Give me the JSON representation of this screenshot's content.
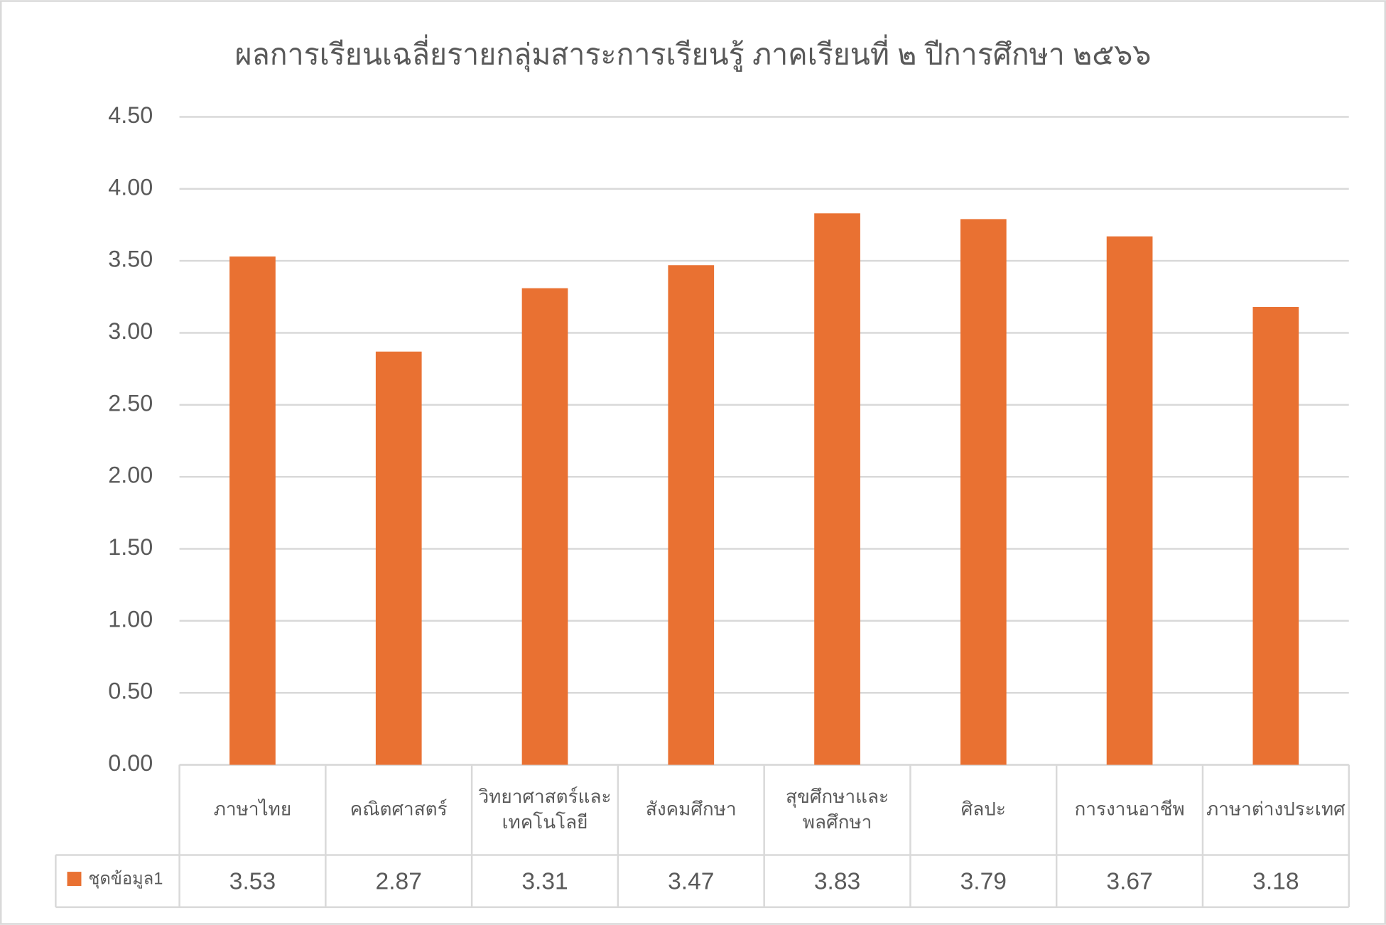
{
  "chart_data": {
    "type": "bar",
    "title": "ผลการเรียนเฉลี่ยรายกลุ่มสาระการเรียนรู้  ภาคเรียนที่ ๒ ปีการศึกษา ๒๕๖๖",
    "categories": [
      "ภาษาไทย",
      "คณิตศาสตร์",
      "วิทยาศาสตร์และเทคโนโลยี",
      "สังคมศึกษา",
      "สุขศึกษาและพลศึกษา",
      "ศิลปะ",
      "การงานอาชีพ",
      "ภาษาต่างประเทศ"
    ],
    "series": [
      {
        "name": "ชุดข้อมูล1",
        "color": "#e97132",
        "values": [
          3.53,
          2.87,
          3.31,
          3.47,
          3.83,
          3.79,
          3.67,
          3.18
        ]
      }
    ],
    "ylim": [
      0,
      4.5
    ],
    "yticks": [
      {
        "value": 0,
        "label": "0.00"
      },
      {
        "value": 0.5,
        "label": "0.50"
      },
      {
        "value": 1,
        "label": "1.00"
      },
      {
        "value": 1.5,
        "label": "1.50"
      },
      {
        "value": 2,
        "label": "2.00"
      },
      {
        "value": 2.5,
        "label": "2.50"
      },
      {
        "value": 3,
        "label": "3.00"
      },
      {
        "value": 3.5,
        "label": "3.50"
      },
      {
        "value": 4,
        "label": "4.00"
      },
      {
        "value": 4.5,
        "label": "4.50"
      }
    ],
    "grid": true
  }
}
